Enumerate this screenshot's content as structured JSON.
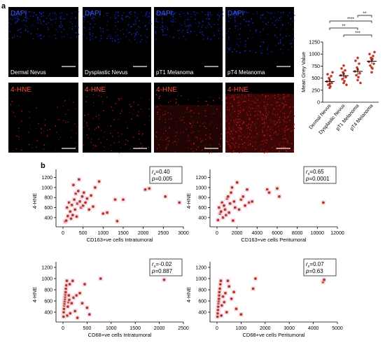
{
  "panel_labels": {
    "a": "a",
    "b": "b"
  },
  "micrographs": {
    "top_tag": "DAPI",
    "bottom_tag": "4-HNE",
    "captions": [
      "Dermal Nevus",
      "Dysplastic Nevus",
      "pT1 Melanoma",
      "pT4 Melanoma"
    ],
    "colors": {
      "dapi": "#1a2bd6",
      "hne": "#d81b1b",
      "background": "#000000"
    }
  },
  "chart_data": [
    {
      "type": "scatter",
      "title": "",
      "ylabel": "Mean Grey Value",
      "xlabel": "",
      "categories": [
        "Dermal Nevus",
        "Dysplastic Nevus",
        "pT1 Melanoma",
        "pT4 Melanoma"
      ],
      "ylim": [
        0,
        1250
      ],
      "yticks": [
        0,
        250,
        500,
        750,
        1000,
        1250
      ],
      "means": [
        430,
        550,
        640,
        850
      ],
      "errors": [
        60,
        70,
        70,
        55
      ],
      "points": [
        [
          300,
          330,
          360,
          400,
          430,
          460,
          500,
          540,
          580,
          620,
          380
        ],
        [
          400,
          440,
          480,
          520,
          560,
          590,
          620,
          660,
          700,
          360,
          760
        ],
        [
          460,
          520,
          560,
          600,
          640,
          680,
          720,
          800,
          860,
          400,
          920
        ],
        [
          620,
          700,
          760,
          800,
          840,
          880,
          920,
          960,
          1000,
          1040,
          720,
          900
        ]
      ],
      "brackets": [
        {
          "from": 2,
          "to": 3,
          "label": "**"
        },
        {
          "from": 0,
          "to": 3,
          "label": "****"
        },
        {
          "from": 0,
          "to": 2,
          "label": "**"
        },
        {
          "from": 1,
          "to": 3,
          "label": "***"
        }
      ],
      "color": "#c0392b"
    },
    {
      "type": "scatter",
      "xlabel": "CD163+ve cells Intratumoral",
      "ylabel": "4-HNE",
      "stat_r": "=0.40",
      "stat_p": "=0.005",
      "xlim": [
        0,
        3000
      ],
      "ylim": [
        300,
        1250
      ],
      "xticks": [
        0,
        500,
        1000,
        1500,
        2000,
        2500,
        3000
      ],
      "yticks": [
        400,
        600,
        800,
        1000,
        1200
      ],
      "x": [
        50,
        80,
        100,
        120,
        150,
        180,
        200,
        220,
        240,
        260,
        280,
        300,
        320,
        340,
        360,
        380,
        400,
        420,
        450,
        480,
        500,
        520,
        560,
        600,
        650,
        700,
        750,
        800,
        900,
        1000,
        1100,
        1300,
        1350,
        1500,
        2050,
        2150,
        2550,
        2900
      ],
      "y": [
        320,
        340,
        600,
        430,
        700,
        520,
        380,
        650,
        450,
        1050,
        760,
        560,
        880,
        420,
        680,
        930,
        1160,
        720,
        600,
        820,
        640,
        900,
        700,
        780,
        560,
        840,
        620,
        1000,
        1120,
        480,
        500,
        760,
        330,
        760,
        960,
        980,
        820,
        700
      ]
    },
    {
      "type": "scatter",
      "xlabel": "CD163+ve cells Peritumoral",
      "ylabel": "4-HNE",
      "stat_r": "=0.65",
      "stat_p": "=0.0001",
      "xlim": [
        0,
        12000
      ],
      "ylim": [
        300,
        1250
      ],
      "xticks": [
        0,
        2000,
        4000,
        6000,
        8000,
        10000,
        12000
      ],
      "yticks": [
        400,
        600,
        800,
        1000,
        1200
      ],
      "x": [
        100,
        200,
        300,
        400,
        500,
        600,
        700,
        800,
        900,
        1000,
        1100,
        1200,
        1300,
        1400,
        1500,
        1600,
        1700,
        1800,
        2000,
        2200,
        2400,
        2600,
        2800,
        3000,
        3200,
        3500,
        5000,
        5200,
        6000,
        6200,
        10600
      ],
      "y": [
        350,
        600,
        480,
        520,
        700,
        400,
        640,
        560,
        450,
        780,
        820,
        500,
        680,
        900,
        1000,
        340,
        720,
        600,
        1100,
        560,
        760,
        820,
        640,
        960,
        700,
        720,
        960,
        900,
        980,
        820,
        700
      ]
    },
    {
      "type": "scatter",
      "xlabel": "CD68+ve cells Intratumoral",
      "ylabel": "4-HNE",
      "stat_r": "=-0.02",
      "stat_p": "=0.887",
      "xlim": [
        0,
        2500
      ],
      "ylim": [
        300,
        1200
      ],
      "xticks": [
        0,
        500,
        1000,
        1500,
        2000,
        2500
      ],
      "yticks": [
        400,
        600,
        800,
        1000,
        1200
      ],
      "x": [
        10,
        15,
        20,
        25,
        30,
        35,
        40,
        45,
        50,
        55,
        60,
        70,
        80,
        90,
        100,
        110,
        120,
        130,
        140,
        150,
        180,
        200,
        220,
        250,
        280,
        300,
        350,
        400,
        450,
        500,
        550,
        780,
        2100
      ],
      "y": [
        320,
        400,
        460,
        520,
        560,
        600,
        640,
        680,
        720,
        760,
        820,
        880,
        960,
        340,
        500,
        580,
        700,
        620,
        900,
        380,
        560,
        960,
        660,
        420,
        700,
        300,
        740,
        560,
        900,
        480,
        360,
        1000,
        980
      ]
    },
    {
      "type": "scatter",
      "xlabel": "CD68+ve cells Peritumoral",
      "ylabel": "4-HNE",
      "stat_r": "=0.07",
      "stat_p": "=0.63",
      "xlim": [
        0,
        5000
      ],
      "ylim": [
        300,
        1200
      ],
      "xticks": [
        0,
        1000,
        2000,
        3000,
        4000,
        5000
      ],
      "yticks": [
        400,
        600,
        800,
        1000,
        1200
      ],
      "x": [
        20,
        30,
        40,
        50,
        60,
        70,
        80,
        90,
        100,
        120,
        140,
        160,
        180,
        200,
        250,
        300,
        350,
        400,
        450,
        500,
        600,
        700,
        800,
        1000,
        1500,
        1600,
        4400,
        4450
      ],
      "y": [
        320,
        380,
        440,
        500,
        560,
        600,
        640,
        700,
        760,
        820,
        900,
        960,
        340,
        520,
        680,
        580,
        740,
        400,
        960,
        860,
        640,
        760,
        460,
        360,
        820,
        1000,
        940,
        980
      ],
      "color": "#c0392b"
    }
  ]
}
